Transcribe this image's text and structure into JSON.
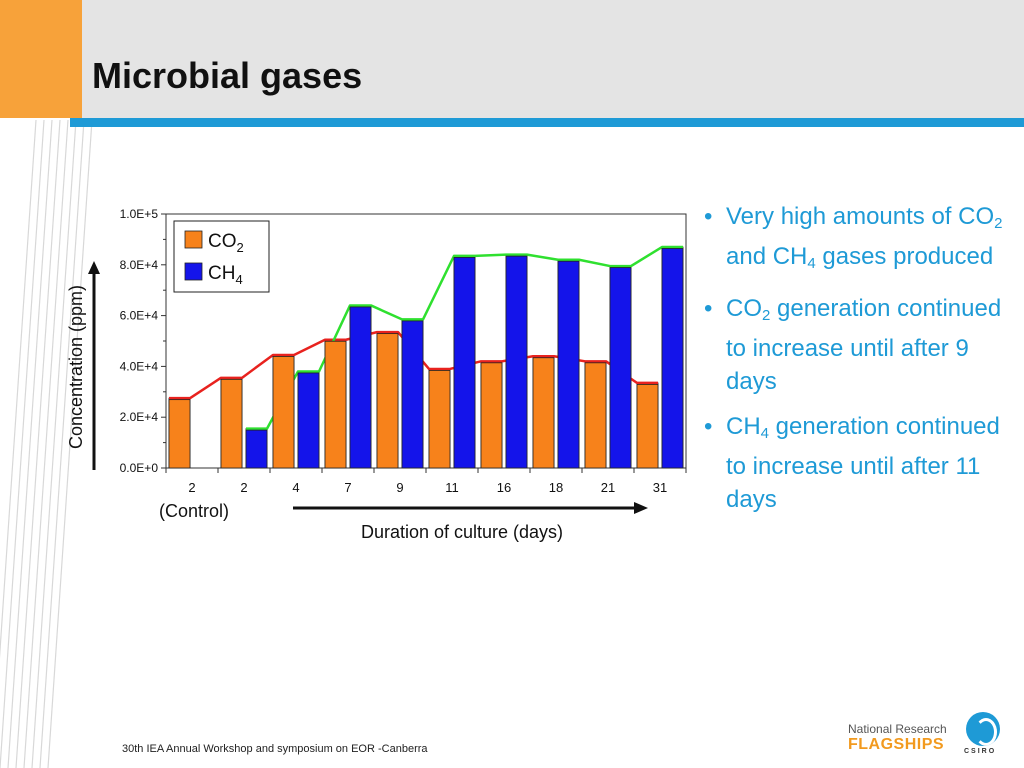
{
  "slide": {
    "title": "Microbial gases",
    "footer": "30th IEA Annual Workshop and symposium on EOR -Canberra",
    "logo": {
      "line1": "National Research",
      "line2": "FLAGSHIPS",
      "line3": "CSIRO"
    },
    "bullets": [
      {
        "parts": [
          "Very high amounts of CO",
          "2",
          " and CH",
          "4",
          " gases produced"
        ]
      },
      {
        "parts": [
          "CO",
          "2",
          " generation continued to increase until after 9 days"
        ]
      },
      {
        "parts": [
          "CH",
          "4",
          " generation continued to increase until after 11 days"
        ]
      }
    ]
  },
  "chart_data": {
    "type": "bar",
    "categories": [
      "2",
      "2",
      "4",
      "7",
      "9",
      "11",
      "16",
      "18",
      "21",
      "31"
    ],
    "series": [
      {
        "name": "CO2",
        "name_base": "CO",
        "name_sub": "2",
        "color": "#f7821b",
        "trend_color": "#e8221e",
        "values": [
          27500,
          35500,
          44500,
          50500,
          53500,
          39000,
          42000,
          44000,
          42000,
          33500
        ]
      },
      {
        "name": "CH4",
        "name_base": "CH",
        "name_sub": "4",
        "color": "#1414ea",
        "trend_color": "#2fe02f",
        "values": [
          null,
          15500,
          38000,
          64000,
          58500,
          83500,
          84000,
          82000,
          79500,
          87000
        ]
      }
    ],
    "ylim": [
      0,
      100000
    ],
    "y_ticks": [
      "0.0E+0",
      "2.0E+4",
      "4.0E+4",
      "6.0E+4",
      "8.0E+4",
      "1.0E+5"
    ],
    "ylabel": "Concentration (ppm)",
    "xlabel": "Duration of culture (days)",
    "annotation": "(Control)",
    "legend": "top-left"
  }
}
